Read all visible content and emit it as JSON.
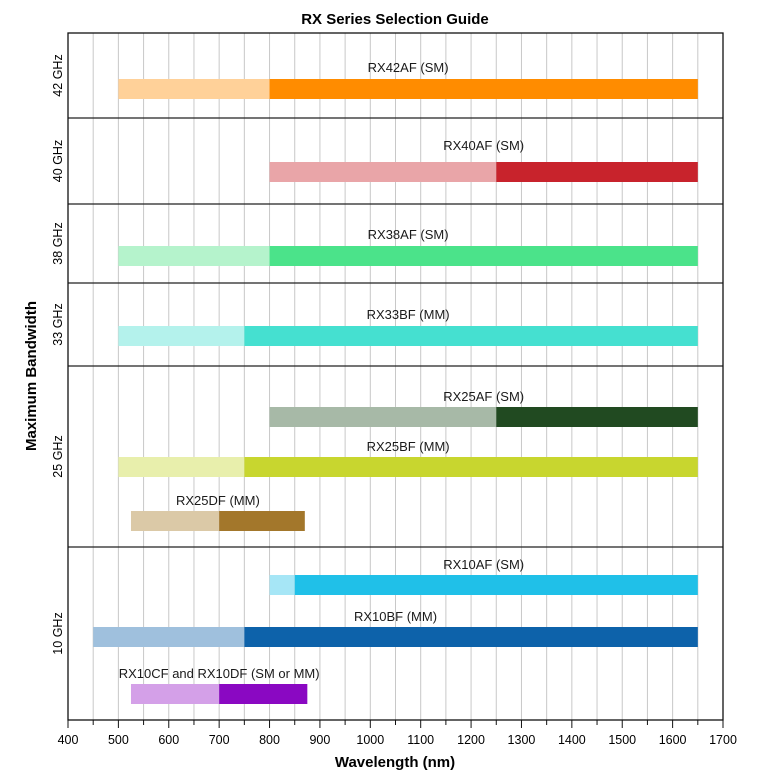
{
  "chart_data": {
    "type": "bar",
    "orientation": "horizontal-range",
    "title": "RX Series Selection Guide",
    "xlabel": "Wavelength (nm)",
    "ylabel": "Maximum Bandwidth",
    "xlim": [
      400,
      1700
    ],
    "xticks": [
      400,
      500,
      600,
      700,
      800,
      900,
      1000,
      1100,
      1200,
      1300,
      1400,
      1500,
      1600,
      1700
    ],
    "grid": "vertical-every-50nm",
    "bands": [
      {
        "label": "42 GHz",
        "series": [
          {
            "name": "RX42AF (SM)",
            "light_range": [
              500,
              800
            ],
            "dark_range": [
              800,
              1650
            ],
            "dark_color": "#ff8c00",
            "light_color": "#ffd199"
          }
        ]
      },
      {
        "label": "40 GHz",
        "series": [
          {
            "name": "RX40AF (SM)",
            "light_range": [
              800,
              1250
            ],
            "dark_range": [
              1250,
              1650
            ],
            "dark_color": "#c8232c",
            "light_color": "#e9a5a8"
          }
        ]
      },
      {
        "label": "38 GHz",
        "series": [
          {
            "name": "RX38AF (SM)",
            "light_range": [
              500,
              800
            ],
            "dark_range": [
              800,
              1650
            ],
            "dark_color": "#4be38a",
            "light_color": "#b5f3cc"
          }
        ]
      },
      {
        "label": "33 GHz",
        "series": [
          {
            "name": "RX33BF (MM)",
            "light_range": [
              500,
              750
            ],
            "dark_range": [
              750,
              1650
            ],
            "dark_color": "#45e0d0",
            "light_color": "#b4f2ec"
          }
        ]
      },
      {
        "label": "25 GHz",
        "series": [
          {
            "name": "RX25AF (SM)",
            "light_range": [
              800,
              1250
            ],
            "dark_range": [
              1250,
              1650
            ],
            "dark_color": "#214a21",
            "light_color": "#a7b9a7"
          },
          {
            "name": "RX25BF (MM)",
            "light_range": [
              500,
              750
            ],
            "dark_range": [
              750,
              1650
            ],
            "dark_color": "#c8d62f",
            "light_color": "#e8efac"
          },
          {
            "name": "RX25DF (MM)",
            "light_range": [
              525,
              700
            ],
            "dark_range": [
              700,
              870
            ],
            "dark_color": "#a3772b",
            "light_color": "#dbc9a7"
          }
        ]
      },
      {
        "label": "10 GHz",
        "series": [
          {
            "name": "RX10AF (SM)",
            "light_range": [
              800,
              850
            ],
            "dark_range": [
              850,
              1650
            ],
            "dark_color": "#20c0e8",
            "light_color": "#a6e6f6"
          },
          {
            "name": "RX10BF (MM)",
            "light_range": [
              450,
              750
            ],
            "dark_range": [
              750,
              1650
            ],
            "dark_color": "#0d62aa",
            "light_color": "#9fc0dd"
          },
          {
            "name": "RX10CF and RX10DF (SM or MM)",
            "light_range": [
              525,
              700
            ],
            "dark_range": [
              700,
              875
            ],
            "dark_color": "#8a08c2",
            "light_color": "#d4a0e8"
          }
        ]
      }
    ]
  }
}
